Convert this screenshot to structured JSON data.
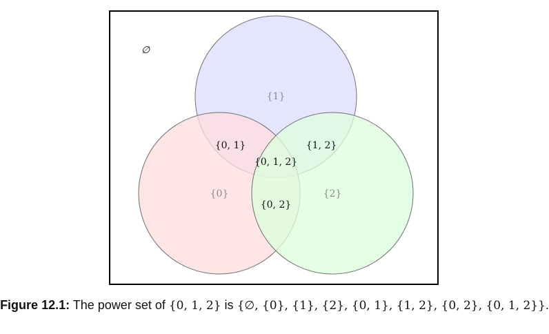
{
  "diagram": {
    "empty_set_label": "∅",
    "regions": {
      "set_1": "{1}",
      "set_0": "{0}",
      "set_2": "{2}",
      "set_01": "{0, 1}",
      "set_12": "{1, 2}",
      "set_012": "{0, 1, 2}",
      "set_02": "{0, 2}"
    },
    "colors": {
      "circle_1_fill": "#dcdcff",
      "circle_0_fill": "#ffdede",
      "circle_2_fill": "#dcffdc",
      "circle_stroke": "#6f6f6f",
      "single_label": "#8a8a8a",
      "multi_label": "#111111",
      "frame": "#000000"
    }
  },
  "caption": {
    "lead": "Figure 12.1:",
    "text": " The power set of ",
    "set": "{0, 1, 2}",
    "is": " is ",
    "power_set": "{∅, {0}, {1}, {2}, {0, 1}, {1, 2}, {0, 2}, {0, 1, 2}}",
    "end": "."
  }
}
